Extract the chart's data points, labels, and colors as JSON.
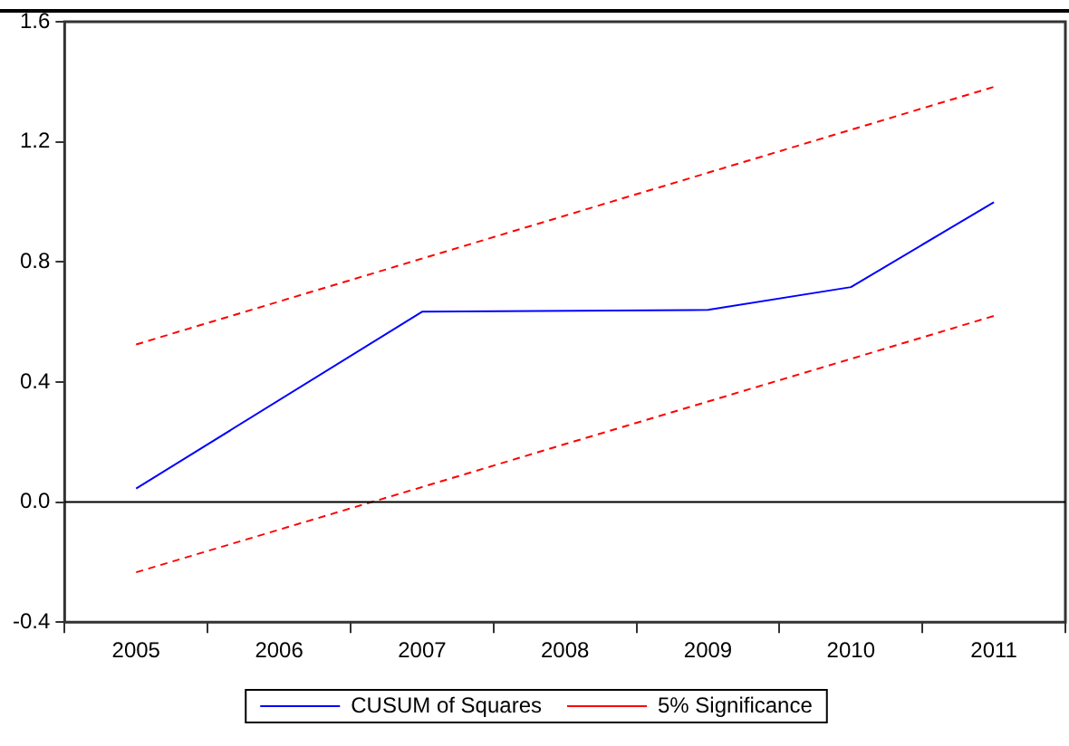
{
  "chart_data": {
    "type": "line",
    "categories": [
      "2005",
      "2006",
      "2007",
      "2008",
      "2009",
      "2010",
      "2011"
    ],
    "series": [
      {
        "name": "CUSUM of Squares",
        "color": "#0000ff",
        "line_style": "solid",
        "values": [
          0.045,
          null,
          0.634,
          null,
          0.64,
          0.716,
          0.999
        ]
      },
      {
        "name": "5% Significance",
        "color": "#ff0000",
        "line_style": "dashed",
        "values": [
          0.525,
          0.668,
          0.811,
          0.954,
          1.097,
          1.24,
          1.383
        ]
      },
      {
        "color": "#ff0000",
        "line_style": "dashed",
        "values": [
          -0.234,
          -0.092,
          0.05,
          0.193,
          0.335,
          0.477,
          0.62
        ]
      }
    ],
    "ylim": [
      -0.4,
      1.6
    ],
    "yticks": [
      {
        "value": -0.4,
        "label": "-0.4"
      },
      {
        "value": 0,
        "label": "0.0"
      },
      {
        "value": 0.4,
        "label": "0.4"
      },
      {
        "value": 0.8,
        "label": "0.8"
      },
      {
        "value": 1.2,
        "label": "1.2"
      },
      {
        "value": 1.6,
        "label": "1.6"
      }
    ],
    "ref_lines": [
      {
        "axis": "y",
        "value": 0,
        "color": "#000000"
      }
    ],
    "grid": false,
    "legend": "bottom",
    "marker": "none"
  }
}
